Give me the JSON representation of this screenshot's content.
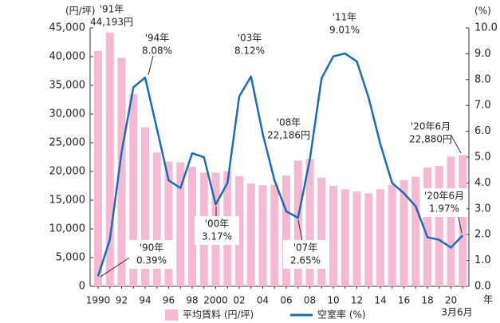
{
  "chart_data": {
    "type": "bar_line",
    "y_unit": "(円/坪)",
    "y2_unit": "(%)",
    "x_unit": "年",
    "x_sublabel": "3月6月",
    "categories": [
      "1990",
      null,
      "92",
      null,
      "94",
      null,
      "96",
      null,
      "98",
      null,
      "2000",
      null,
      "02",
      null,
      "04",
      null,
      "06",
      null,
      "08",
      null,
      "10",
      null,
      "12",
      null,
      "14",
      null,
      "16",
      null,
      "18",
      null,
      "20",
      null
    ],
    "series": [
      {
        "name": "平均賃料 (円/坪)",
        "type": "bar",
        "color": "#f5b9d2",
        "values": [
          41000,
          44193,
          39800,
          33500,
          27700,
          23300,
          21700,
          21600,
          20800,
          19800,
          19800,
          20000,
          19200,
          17900,
          17600,
          17700,
          19300,
          21900,
          22186,
          18900,
          17500,
          16900,
          16500,
          16200,
          16900,
          17700,
          18500,
          19100,
          20700,
          21000,
          22600,
          22880
        ],
        "point_labels": [
          null,
          "'91年",
          null,
          null,
          null,
          null,
          null,
          null,
          null,
          null,
          null,
          null,
          null,
          null,
          null,
          null,
          null,
          null,
          "'08年",
          null,
          null,
          null,
          null,
          null,
          null,
          null,
          null,
          null,
          null,
          null,
          null,
          "'20年6月"
        ],
        "value_labels": [
          null,
          "44,193円",
          null,
          null,
          null,
          null,
          null,
          null,
          null,
          null,
          null,
          null,
          null,
          null,
          null,
          null,
          null,
          null,
          "22,186円",
          null,
          null,
          null,
          null,
          null,
          null,
          null,
          null,
          null,
          null,
          null,
          null,
          "22,880円"
        ]
      },
      {
        "name": "空室率 (%)",
        "type": "line",
        "axis": "y2",
        "color": "#1b6db3",
        "values": [
          0.39,
          1.8,
          5.2,
          7.7,
          8.08,
          6.1,
          4.1,
          3.8,
          5.15,
          5.0,
          3.17,
          4.0,
          7.35,
          8.12,
          5.9,
          4.1,
          2.9,
          2.65,
          4.9,
          8.05,
          8.9,
          9.01,
          8.7,
          7.3,
          5.5,
          4.0,
          3.6,
          3.1,
          1.9,
          1.8,
          1.5,
          1.97
        ],
        "point_labels": [
          "'90年",
          null,
          null,
          null,
          "'94年",
          null,
          null,
          null,
          null,
          null,
          "'00年",
          null,
          null,
          "'03年",
          null,
          null,
          null,
          "'07年",
          null,
          null,
          null,
          "'11年",
          null,
          null,
          null,
          null,
          null,
          null,
          null,
          null,
          null,
          "'20年6月"
        ],
        "value_labels": [
          "0.39%",
          null,
          null,
          null,
          "8.08%",
          null,
          null,
          null,
          null,
          null,
          "3.17%",
          null,
          null,
          "8.12%",
          null,
          null,
          null,
          "2.65%",
          null,
          null,
          null,
          "9.01%",
          null,
          null,
          null,
          null,
          null,
          null,
          null,
          null,
          null,
          "1.97%"
        ]
      }
    ],
    "ylim": [
      0,
      45000
    ],
    "yticks": [
      0,
      {
        "value": 5000,
        "label": "5,000"
      },
      {
        "value": 10000,
        "label": "10,000"
      },
      {
        "value": 15000,
        "label": "15,000"
      },
      {
        "value": 20000,
        "label": "20,000"
      },
      {
        "value": 25000,
        "label": "25,000"
      },
      {
        "value": 30000,
        "label": "30,000"
      },
      {
        "value": 35000,
        "label": "35,000"
      },
      {
        "value": 40000,
        "label": "40,000"
      },
      {
        "value": 45000,
        "label": "45,000"
      }
    ],
    "y2lim": [
      0,
      10
    ],
    "y2ticks": [
      {
        "value": 0,
        "label": "0.0"
      },
      {
        "value": 1,
        "label": "1.0"
      },
      {
        "value": 2,
        "label": "2.0"
      },
      {
        "value": 3,
        "label": "3.0"
      },
      {
        "value": 4,
        "label": "4.0"
      },
      {
        "value": 5,
        "label": "5.0"
      },
      {
        "value": 6,
        "label": "6.0"
      },
      {
        "value": 7,
        "label": "7.0"
      },
      {
        "value": 8,
        "label": "8.0"
      },
      {
        "value": 9,
        "label": "9.0"
      },
      {
        "value": 10,
        "label": "10.0"
      }
    ],
    "grid": false,
    "legend": "bottom"
  }
}
